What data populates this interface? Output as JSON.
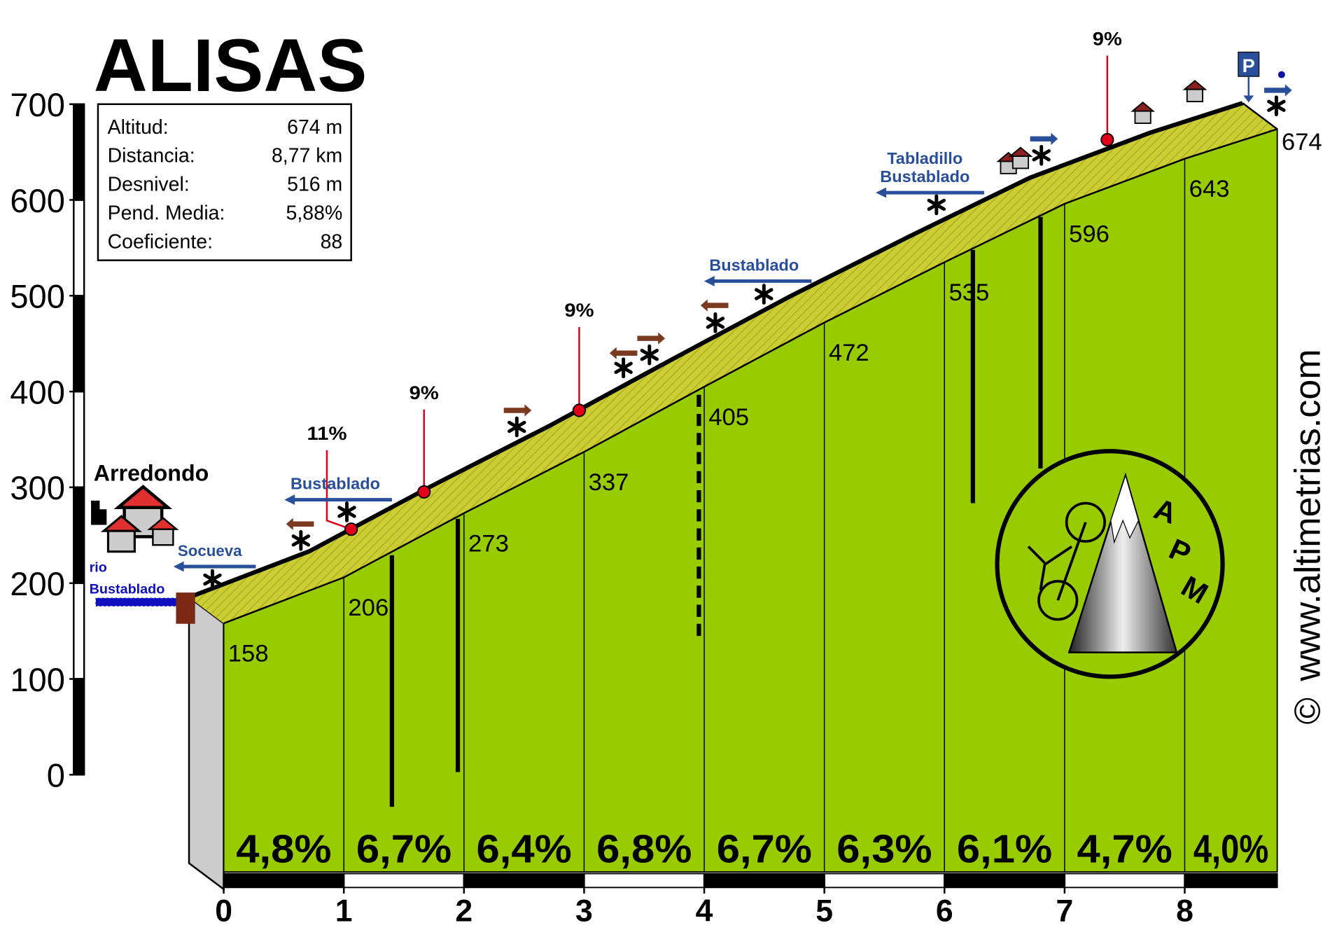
{
  "chart_data": {
    "type": "profile",
    "title": "ALISAS",
    "x": [
      0,
      1,
      2,
      3,
      4,
      5,
      6,
      7,
      8,
      8.77
    ],
    "values": [
      158,
      206,
      273,
      337,
      405,
      472,
      535,
      596,
      643,
      674
    ],
    "xlim": [
      0,
      8.77
    ],
    "ylim": [
      0,
      700
    ],
    "xticks": [
      0,
      1,
      2,
      3,
      4,
      5,
      6,
      7,
      8
    ],
    "yticks": [
      0,
      100,
      200,
      300,
      400,
      500,
      600,
      700
    ],
    "gradients": {
      "values": [
        4.8,
        6.7,
        6.4,
        6.8,
        6.7,
        6.3,
        6.1,
        4.7,
        4.0
      ],
      "value_labels": [
        "4,8%",
        "6,7%",
        "6,4%",
        "6,8%",
        "6,7%",
        "6,3%",
        "6,1%",
        "4,7%",
        "4,0%"
      ]
    },
    "info": [
      {
        "label": "Altitud:",
        "value": "674 m"
      },
      {
        "label": "Distancia:",
        "value": "8,77 km"
      },
      {
        "label": "Desnivel:",
        "value": "516 m"
      },
      {
        "label": "Pend. Media:",
        "value": "5,88%"
      },
      {
        "label": "Coeficiente:",
        "value": "88"
      }
    ],
    "annotations": [
      "11%",
      "9%",
      "9%",
      "9%"
    ],
    "places": [
      "Arredondo",
      "Socueva",
      "Bustablado",
      "rio",
      "Bustablado",
      "Bustablado",
      "Tabladillo",
      "Bustablado"
    ],
    "credit": "www.altimetrias.com",
    "copyright": "©",
    "logo": [
      "A",
      "P",
      "M"
    ],
    "parking": "P",
    "colors": {
      "face": "#99cc00",
      "road": "#cccc33",
      "side": "#cccccc",
      "sign": "#2a4f9a",
      "marker": "#e0001a"
    }
  }
}
